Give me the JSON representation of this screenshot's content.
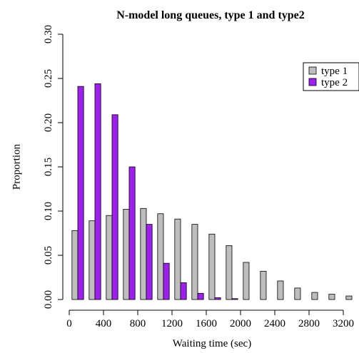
{
  "chart_data": {
    "type": "bar",
    "title": "N-model long queues, type 1 and type2",
    "x_label": "Waiting time (sec)",
    "y_label": "Proportion",
    "x": [
      100,
      300,
      500,
      700,
      900,
      1100,
      1300,
      1500,
      1700,
      1900,
      2100,
      2300,
      2500,
      2700,
      2900,
      3100,
      3300
    ],
    "series": [
      {
        "name": "type 1",
        "color": "#bebebe",
        "values": [
          0.078,
          0.089,
          0.095,
          0.102,
          0.103,
          0.097,
          0.091,
          0.085,
          0.074,
          0.061,
          0.042,
          0.032,
          0.021,
          0.013,
          0.008,
          0.006,
          0.004
        ]
      },
      {
        "name": "type 2",
        "color": "#a020f0",
        "values": [
          0.241,
          0.244,
          0.209,
          0.15,
          0.085,
          0.041,
          0.019,
          0.007,
          0.002,
          0.001,
          0,
          0,
          0,
          0,
          0,
          0,
          0
        ]
      }
    ],
    "xlim": [
      -80,
      3300
    ],
    "xticks": [
      0,
      400,
      800,
      1200,
      1600,
      2000,
      2400,
      2800,
      3200
    ],
    "ylim": [
      0,
      0.3
    ],
    "yticks": [
      {
        "value": 0,
        "label": "0.00"
      },
      {
        "value": 0.05,
        "label": "0.05"
      },
      {
        "value": 0.1,
        "label": "0.10"
      },
      {
        "value": 0.15,
        "label": "0.15"
      },
      {
        "value": 0.2,
        "label": "0.20"
      },
      {
        "value": 0.25,
        "label": "0.25"
      },
      {
        "value": 0.3,
        "label": "0.30"
      }
    ],
    "legend": "top-right"
  }
}
